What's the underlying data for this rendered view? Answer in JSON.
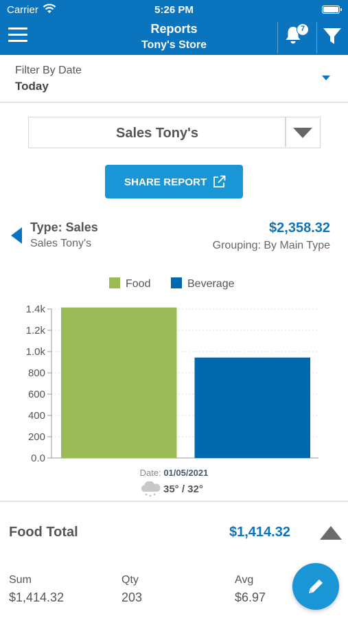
{
  "status_bar": {
    "carrier": "Carrier",
    "time": "5:26 PM"
  },
  "nav": {
    "title": "Reports",
    "subtitle": "Tony's Store",
    "notification_count": "7",
    "icons": [
      "menu-icon",
      "bell-icon",
      "filter-icon"
    ],
    "color": "#0b74bf"
  },
  "date_filter": {
    "label": "Filter By Date",
    "value": "Today"
  },
  "report_select": {
    "value": "Sales Tony's"
  },
  "share_button": {
    "label": "SHARE REPORT",
    "icon": "external-link-icon"
  },
  "report": {
    "type_title": "Type: Sales",
    "type_subtitle": "Sales Tony's",
    "amount": "$2,358.32",
    "grouping": "Grouping: By Main Type"
  },
  "chart_data": {
    "type": "bar",
    "categories": [
      "Food",
      "Beverage"
    ],
    "values": [
      1414.32,
      944.0
    ],
    "series": [
      {
        "name": "Food",
        "value": 1414.32,
        "color": "#9bbb59"
      },
      {
        "name": "Beverage",
        "value": 944.0,
        "color": "#0068ac"
      }
    ],
    "yticks": [
      "0.0",
      "200",
      "400",
      "600",
      "800",
      "1.0k",
      "1.2k",
      "1.4k"
    ],
    "ylim": [
      0,
      1400
    ],
    "grid": true,
    "legend_position": "top"
  },
  "chart_footer": {
    "date_label": "Date:",
    "date_value": "01/05/2021",
    "temperature": "35° / 32°",
    "weather_icon": "snow-cloud-icon"
  },
  "summary": {
    "label": "Food Total",
    "amount": "$1,414.32",
    "stats": [
      {
        "label": "Sum",
        "value": "$1,414.32"
      },
      {
        "label": "Qty",
        "value": "203"
      },
      {
        "label": "Avg",
        "value": "$6.97"
      }
    ]
  },
  "fab": {
    "icon": "pencil-icon"
  }
}
